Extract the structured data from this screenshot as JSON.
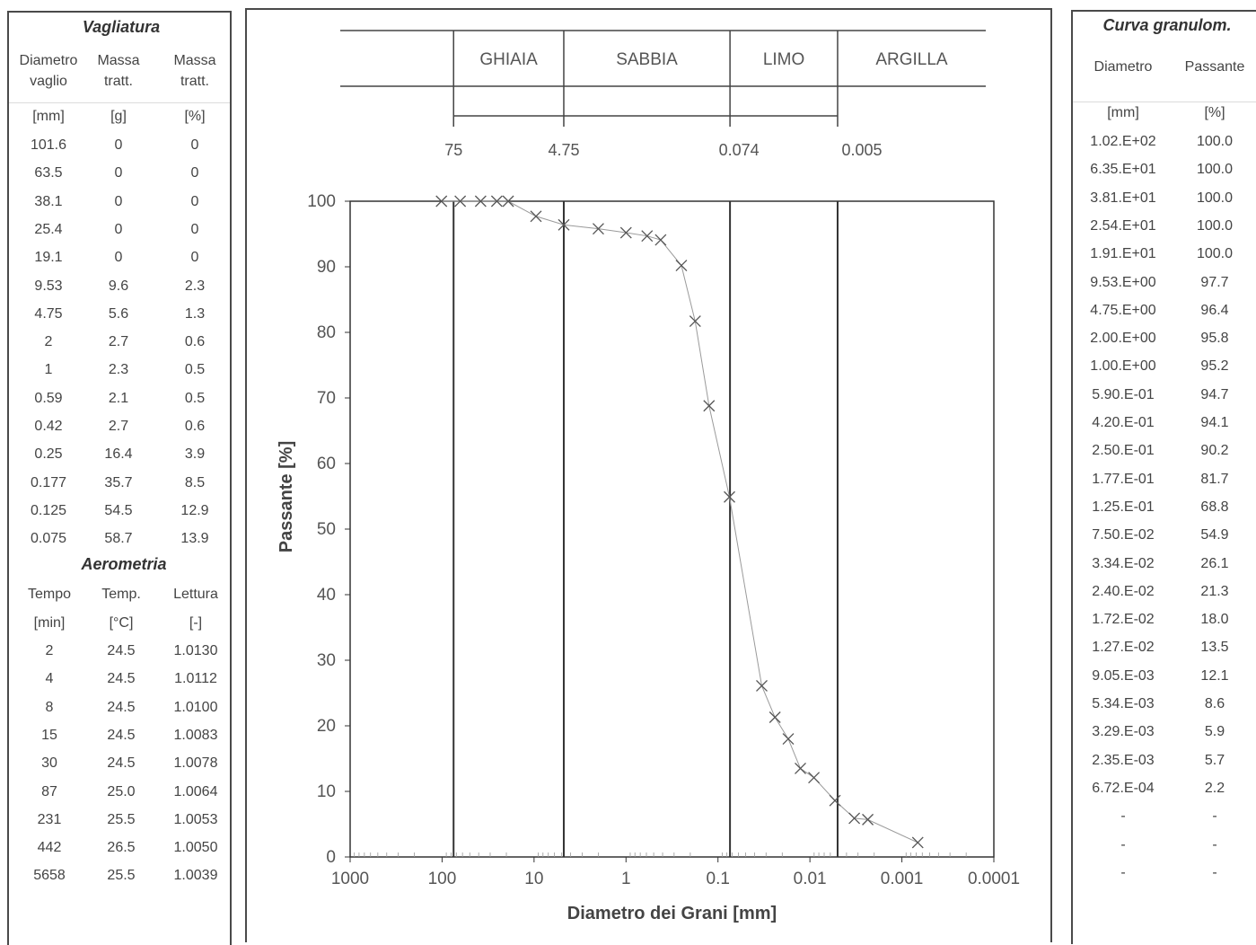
{
  "left": {
    "vagliatura_title": "Vagliatura",
    "headers": [
      {
        "l1": "Diametro",
        "l2": "vaglio",
        "unit": "[mm]"
      },
      {
        "l1": "Massa",
        "l2": "tratt.",
        "unit": "[g]"
      },
      {
        "l1": "Massa",
        "l2": "tratt.",
        "unit": "[%]"
      }
    ],
    "sieve_rows": [
      [
        "101.6",
        "0",
        "0"
      ],
      [
        "63.5",
        "0",
        "0"
      ],
      [
        "38.1",
        "0",
        "0"
      ],
      [
        "25.4",
        "0",
        "0"
      ],
      [
        "19.1",
        "0",
        "0"
      ],
      [
        "9.53",
        "9.6",
        "2.3"
      ],
      [
        "4.75",
        "5.6",
        "1.3"
      ],
      [
        "2",
        "2.7",
        "0.6"
      ],
      [
        "1",
        "2.3",
        "0.5"
      ],
      [
        "0.59",
        "2.1",
        "0.5"
      ],
      [
        "0.42",
        "2.7",
        "0.6"
      ],
      [
        "0.25",
        "16.4",
        "3.9"
      ],
      [
        "0.177",
        "35.7",
        "8.5"
      ],
      [
        "0.125",
        "54.5",
        "12.9"
      ],
      [
        "0.075",
        "58.7",
        "13.9"
      ]
    ],
    "aerometria_title": "Aerometria",
    "aero_headers": [
      "Tempo",
      "Temp.",
      "Lettura"
    ],
    "aero_units": [
      "[min]",
      "[°C]",
      "[-]"
    ],
    "aero_rows": [
      [
        "2",
        "24.5",
        "1.0130"
      ],
      [
        "4",
        "24.5",
        "1.0112"
      ],
      [
        "8",
        "24.5",
        "1.0100"
      ],
      [
        "15",
        "24.5",
        "1.0083"
      ],
      [
        "30",
        "24.5",
        "1.0078"
      ],
      [
        "87",
        "25.0",
        "1.0064"
      ],
      [
        "231",
        "25.5",
        "1.0053"
      ],
      [
        "442",
        "26.5",
        "1.0050"
      ],
      [
        "5658",
        "25.5",
        "1.0039"
      ]
    ]
  },
  "right": {
    "title": "Curva granulom.",
    "headers": [
      "Diametro",
      "Passante"
    ],
    "units": [
      "[mm]",
      "[%]"
    ],
    "rows": [
      [
        "1.02.E+02",
        "100.0"
      ],
      [
        "6.35.E+01",
        "100.0"
      ],
      [
        "3.81.E+01",
        "100.0"
      ],
      [
        "2.54.E+01",
        "100.0"
      ],
      [
        "1.91.E+01",
        "100.0"
      ],
      [
        "9.53.E+00",
        "97.7"
      ],
      [
        "4.75.E+00",
        "96.4"
      ],
      [
        "2.00.E+00",
        "95.8"
      ],
      [
        "1.00.E+00",
        "95.2"
      ],
      [
        "5.90.E-01",
        "94.7"
      ],
      [
        "4.20.E-01",
        "94.1"
      ],
      [
        "2.50.E-01",
        "90.2"
      ],
      [
        "1.77.E-01",
        "81.7"
      ],
      [
        "1.25.E-01",
        "68.8"
      ],
      [
        "7.50.E-02",
        "54.9"
      ],
      [
        "3.34.E-02",
        "26.1"
      ],
      [
        "2.40.E-02",
        "21.3"
      ],
      [
        "1.72.E-02",
        "18.0"
      ],
      [
        "1.27.E-02",
        "13.5"
      ],
      [
        "9.05.E-03",
        "12.1"
      ],
      [
        "5.34.E-03",
        "8.6"
      ],
      [
        "3.29.E-03",
        "5.9"
      ],
      [
        "2.35.E-03",
        "5.7"
      ],
      [
        "6.72.E-04",
        "2.2"
      ],
      [
        "-",
        "-"
      ],
      [
        "-",
        "-"
      ],
      [
        "-",
        "-"
      ]
    ]
  },
  "classification": {
    "labels": [
      "GHIAIA",
      "SABBIA",
      "LIMO",
      "ARGILLA"
    ],
    "limits": [
      "75",
      "4.75",
      "0.074",
      "0.005"
    ]
  },
  "chart_data": {
    "type": "scatter",
    "xscale": "log",
    "xreversed": true,
    "xlabel": "Diametro dei Grani [mm]",
    "ylabel": "Passante [%]",
    "xlim": [
      1000,
      0.0001
    ],
    "ylim": [
      0,
      100
    ],
    "xticks": [
      "1000",
      "100",
      "10",
      "1",
      "0.1",
      "0.01",
      "0.001",
      "0.0001"
    ],
    "yticks": [
      "0",
      "10",
      "20",
      "30",
      "40",
      "50",
      "60",
      "70",
      "80",
      "90",
      "100"
    ],
    "boundaries": [
      75,
      4.75,
      0.074,
      0.005
    ],
    "series": [
      {
        "x": [
          101.6,
          63.5,
          38.1,
          25.4,
          19.1,
          9.53,
          4.75,
          2.0,
          1.0,
          0.59,
          0.42,
          0.25,
          0.177,
          0.125,
          0.075,
          0.0334,
          0.024,
          0.0172,
          0.0127,
          0.00905,
          0.00534,
          0.00329,
          0.00235,
          0.000672
        ],
        "y": [
          100.0,
          100.0,
          100.0,
          100.0,
          100.0,
          97.7,
          96.4,
          95.8,
          95.2,
          94.7,
          94.1,
          90.2,
          81.7,
          68.8,
          54.9,
          26.1,
          21.3,
          18.0,
          13.5,
          12.1,
          8.6,
          5.9,
          5.7,
          2.2
        ]
      }
    ],
    "line_color": "#9a9a9a",
    "marker_color": "#555555"
  }
}
